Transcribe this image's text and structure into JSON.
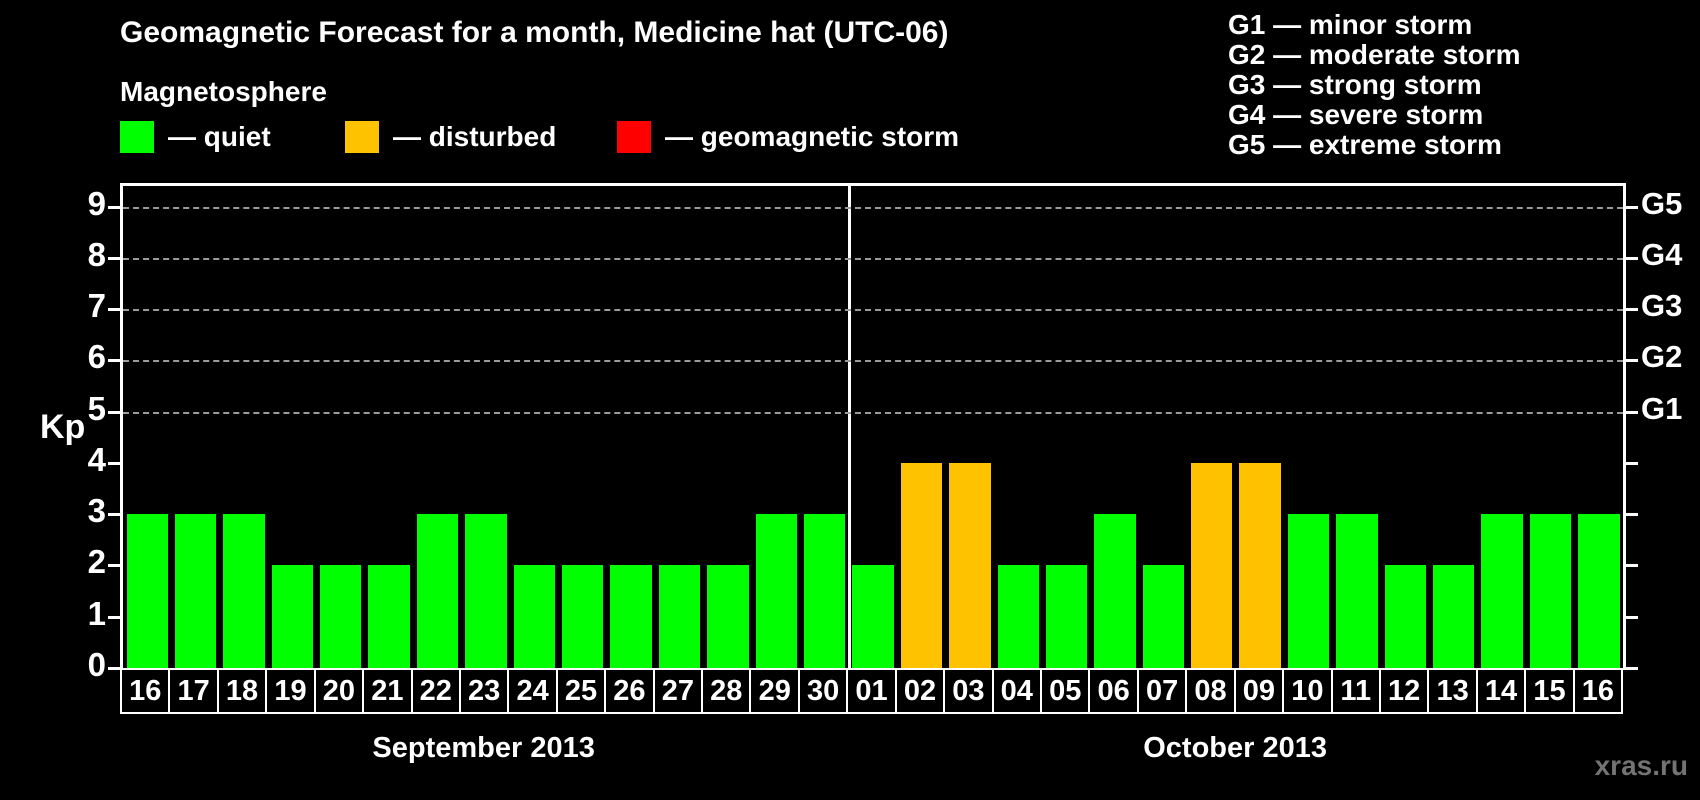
{
  "title": "Geomagnetic Forecast for a month, Medicine hat (UTC-06)",
  "legend": {
    "heading": "Magnetosphere",
    "items": [
      {
        "key": "quiet",
        "label": "— quiet",
        "color": "#00ff00"
      },
      {
        "key": "disturbed",
        "label": "— disturbed",
        "color": "#ffc200"
      },
      {
        "key": "storm",
        "label": "— geomagnetic storm",
        "color": "#ff0000"
      }
    ]
  },
  "g_legend": [
    "G1 — minor storm",
    "G2 — moderate storm",
    "G3 — strong storm",
    "G4 — severe storm",
    "G5 — extreme storm"
  ],
  "watermark": "xras.ru",
  "chart_data": {
    "type": "bar",
    "title": "Geomagnetic Forecast for a month, Medicine hat (UTC-06)",
    "xlabel": "",
    "ylabel": "Kp",
    "ylim": [
      0,
      9.4
    ],
    "y_ticks": [
      0,
      1,
      2,
      3,
      4,
      5,
      6,
      7,
      8,
      9
    ],
    "gridlines_at": [
      5,
      6,
      7,
      8,
      9
    ],
    "grid": "dashed horizontal lines at storm levels G1–G5",
    "legend_position": "top-left",
    "right_axis_labels": [
      {
        "kp": 5,
        "label": "G1"
      },
      {
        "kp": 6,
        "label": "G2"
      },
      {
        "kp": 7,
        "label": "G3"
      },
      {
        "kp": 8,
        "label": "G4"
      },
      {
        "kp": 9,
        "label": "G5"
      }
    ],
    "status_colors": {
      "quiet": "#00ff00",
      "disturbed": "#ffc200",
      "storm": "#ff0000"
    },
    "months": [
      {
        "label": "September 2013",
        "days": 15
      },
      {
        "label": "October 2013",
        "days": 16
      }
    ],
    "categories": [
      "16",
      "17",
      "18",
      "19",
      "20",
      "21",
      "22",
      "23",
      "24",
      "25",
      "26",
      "27",
      "28",
      "29",
      "30",
      "01",
      "02",
      "03",
      "04",
      "05",
      "06",
      "07",
      "08",
      "09",
      "10",
      "11",
      "12",
      "13",
      "14",
      "15",
      "16"
    ],
    "values": [
      3,
      3,
      3,
      2,
      2,
      2,
      3,
      3,
      2,
      2,
      2,
      2,
      2,
      3,
      3,
      2,
      4,
      4,
      2,
      2,
      3,
      2,
      4,
      4,
      3,
      3,
      2,
      2,
      3,
      3,
      3
    ],
    "bars": [
      {
        "month": "September 2013",
        "day": "16",
        "kp": 3,
        "status": "quiet"
      },
      {
        "month": "September 2013",
        "day": "17",
        "kp": 3,
        "status": "quiet"
      },
      {
        "month": "September 2013",
        "day": "18",
        "kp": 3,
        "status": "quiet"
      },
      {
        "month": "September 2013",
        "day": "19",
        "kp": 2,
        "status": "quiet"
      },
      {
        "month": "September 2013",
        "day": "20",
        "kp": 2,
        "status": "quiet"
      },
      {
        "month": "September 2013",
        "day": "21",
        "kp": 2,
        "status": "quiet"
      },
      {
        "month": "September 2013",
        "day": "22",
        "kp": 3,
        "status": "quiet"
      },
      {
        "month": "September 2013",
        "day": "23",
        "kp": 3,
        "status": "quiet"
      },
      {
        "month": "September 2013",
        "day": "24",
        "kp": 2,
        "status": "quiet"
      },
      {
        "month": "September 2013",
        "day": "25",
        "kp": 2,
        "status": "quiet"
      },
      {
        "month": "September 2013",
        "day": "26",
        "kp": 2,
        "status": "quiet"
      },
      {
        "month": "September 2013",
        "day": "27",
        "kp": 2,
        "status": "quiet"
      },
      {
        "month": "September 2013",
        "day": "28",
        "kp": 2,
        "status": "quiet"
      },
      {
        "month": "September 2013",
        "day": "29",
        "kp": 3,
        "status": "quiet"
      },
      {
        "month": "September 2013",
        "day": "30",
        "kp": 3,
        "status": "quiet"
      },
      {
        "month": "October 2013",
        "day": "01",
        "kp": 2,
        "status": "quiet"
      },
      {
        "month": "October 2013",
        "day": "02",
        "kp": 4,
        "status": "disturbed"
      },
      {
        "month": "October 2013",
        "day": "03",
        "kp": 4,
        "status": "disturbed"
      },
      {
        "month": "October 2013",
        "day": "04",
        "kp": 2,
        "status": "quiet"
      },
      {
        "month": "October 2013",
        "day": "05",
        "kp": 2,
        "status": "quiet"
      },
      {
        "month": "October 2013",
        "day": "06",
        "kp": 3,
        "status": "quiet"
      },
      {
        "month": "October 2013",
        "day": "07",
        "kp": 2,
        "status": "quiet"
      },
      {
        "month": "October 2013",
        "day": "08",
        "kp": 4,
        "status": "disturbed"
      },
      {
        "month": "October 2013",
        "day": "09",
        "kp": 4,
        "status": "disturbed"
      },
      {
        "month": "October 2013",
        "day": "10",
        "kp": 3,
        "status": "quiet"
      },
      {
        "month": "October 2013",
        "day": "11",
        "kp": 3,
        "status": "quiet"
      },
      {
        "month": "October 2013",
        "day": "12",
        "kp": 2,
        "status": "quiet"
      },
      {
        "month": "October 2013",
        "day": "13",
        "kp": 2,
        "status": "quiet"
      },
      {
        "month": "October 2013",
        "day": "14",
        "kp": 3,
        "status": "quiet"
      },
      {
        "month": "October 2013",
        "day": "15",
        "kp": 3,
        "status": "quiet"
      },
      {
        "month": "October 2013",
        "day": "16",
        "kp": 3,
        "status": "quiet"
      }
    ]
  }
}
